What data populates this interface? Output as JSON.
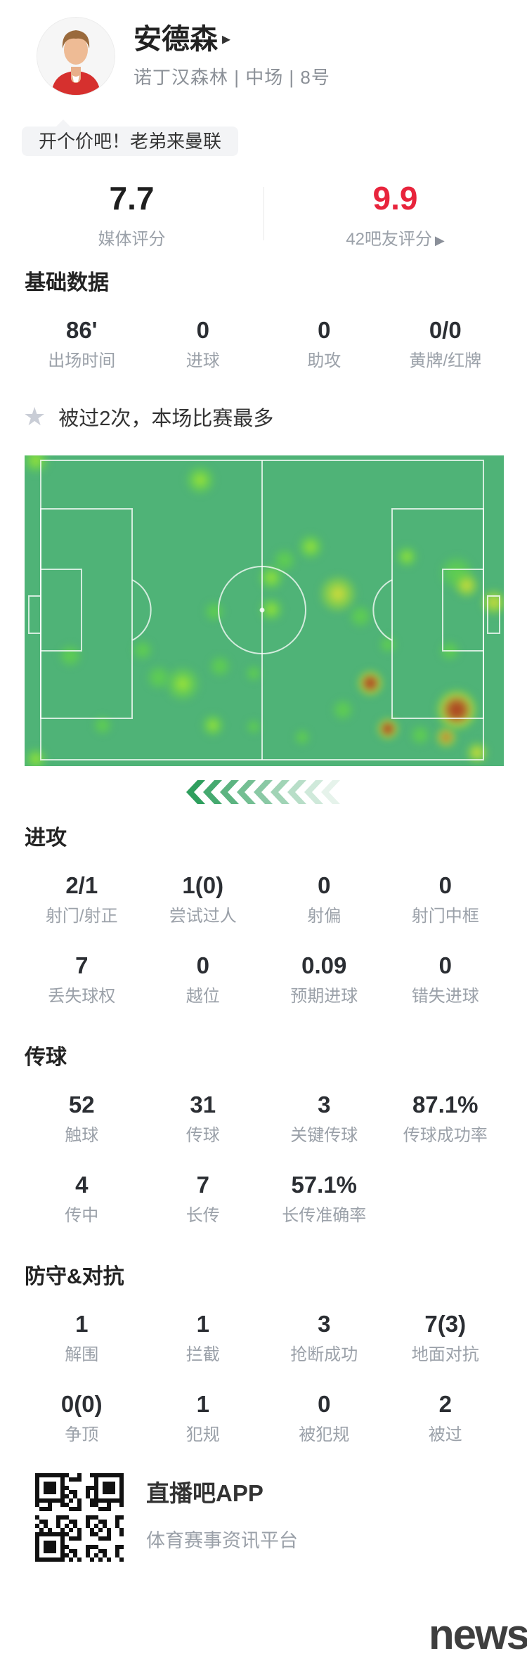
{
  "header": {
    "player_name": "安德森",
    "name_arrow": "▸",
    "team_line": "诺丁汉森林 | 中场 | 8号",
    "quote": "开个价吧！老弟来曼联"
  },
  "ratings": {
    "media": {
      "value": "7.7",
      "label": "媒体评分"
    },
    "fans": {
      "value": "9.9",
      "label": "42吧友评分",
      "arrow": "▶"
    },
    "accent_color": "#e8243c"
  },
  "basic": {
    "title": "基础数据",
    "stats": [
      {
        "v": "86'",
        "l": "出场时间"
      },
      {
        "v": "0",
        "l": "进球"
      },
      {
        "v": "0",
        "l": "助攻"
      },
      {
        "v": "0/0",
        "l": "黄牌/红牌"
      }
    ]
  },
  "highlight": {
    "star_icon": "★",
    "text": "被过2次，本场比赛最多"
  },
  "heatmap": {
    "pitch_color": "#4fb377",
    "line_color": "rgba(255,255,255,0.75)",
    "spots": [
      [
        2.3,
        1.6,
        20,
        "b"
      ],
      [
        36.7,
        7.9,
        22,
        "b"
      ],
      [
        59.7,
        29.4,
        19,
        "b"
      ],
      [
        54.3,
        33.7,
        17,
        "g"
      ],
      [
        51.5,
        39.4,
        19,
        "b"
      ],
      [
        51.5,
        49.5,
        18,
        "b"
      ],
      [
        39.6,
        50.2,
        15,
        "g"
      ],
      [
        65.4,
        44.6,
        27,
        "y"
      ],
      [
        70.1,
        51.8,
        17,
        "g"
      ],
      [
        79.8,
        32.6,
        16,
        "b"
      ],
      [
        90.2,
        37.8,
        25,
        "g"
      ],
      [
        92.2,
        41.9,
        18,
        "y"
      ],
      [
        97.9,
        47.3,
        19,
        "y"
      ],
      [
        75.8,
        60.9,
        13,
        "g"
      ],
      [
        88.7,
        62.9,
        15,
        "g"
      ],
      [
        9.5,
        64.5,
        17,
        "g"
      ],
      [
        24.6,
        62.7,
        15,
        "g"
      ],
      [
        40.8,
        67.9,
        16,
        "g"
      ],
      [
        47.8,
        70.1,
        12,
        "g"
      ],
      [
        33.0,
        73.5,
        26,
        "b"
      ],
      [
        28.0,
        71.5,
        18,
        "g"
      ],
      [
        16.3,
        86.9,
        14,
        "g"
      ],
      [
        39.3,
        86.9,
        17,
        "b"
      ],
      [
        47.8,
        87.3,
        11,
        "g"
      ],
      [
        72.1,
        73.3,
        19,
        "r"
      ],
      [
        66.4,
        81.9,
        16,
        "g"
      ],
      [
        75.8,
        88.0,
        16,
        "r"
      ],
      [
        90.2,
        81.9,
        30,
        "r"
      ],
      [
        88.0,
        90.7,
        16,
        "o"
      ],
      [
        94.4,
        95.7,
        16,
        "y"
      ],
      [
        82.6,
        90.0,
        15,
        "g"
      ],
      [
        2.3,
        97.7,
        17,
        "b"
      ],
      [
        57.9,
        90.7,
        12,
        "g"
      ]
    ]
  },
  "direction": {
    "chevron_color": "#2f9f5e",
    "count": 9
  },
  "attack": {
    "title": "进攻",
    "rows": [
      [
        {
          "v": "2/1",
          "l": "射门/射正"
        },
        {
          "v": "1(0)",
          "l": "尝试过人"
        },
        {
          "v": "0",
          "l": "射偏"
        },
        {
          "v": "0",
          "l": "射门中框"
        }
      ],
      [
        {
          "v": "7",
          "l": "丢失球权"
        },
        {
          "v": "0",
          "l": "越位"
        },
        {
          "v": "0.09",
          "l": "预期进球"
        },
        {
          "v": "0",
          "l": "错失进球"
        }
      ]
    ]
  },
  "passing": {
    "title": "传球",
    "rows": [
      [
        {
          "v": "52",
          "l": "触球"
        },
        {
          "v": "31",
          "l": "传球"
        },
        {
          "v": "3",
          "l": "关键传球"
        },
        {
          "v": "87.1%",
          "l": "传球成功率"
        }
      ],
      [
        {
          "v": "4",
          "l": "传中"
        },
        {
          "v": "7",
          "l": "长传"
        },
        {
          "v": "57.1%",
          "l": "长传准确率"
        }
      ]
    ]
  },
  "defense": {
    "title": "防守&对抗",
    "rows": [
      [
        {
          "v": "1",
          "l": "解围"
        },
        {
          "v": "1",
          "l": "拦截"
        },
        {
          "v": "3",
          "l": "抢断成功"
        },
        {
          "v": "7(3)",
          "l": "地面对抗"
        }
      ],
      [
        {
          "v": "0(0)",
          "l": "争顶"
        },
        {
          "v": "1",
          "l": "犯规"
        },
        {
          "v": "0",
          "l": "被犯规"
        },
        {
          "v": "2",
          "l": "被过"
        }
      ]
    ]
  },
  "footer": {
    "app_name": "直播吧APP",
    "app_desc": "体育赛事资讯平台",
    "watermark": "news"
  }
}
